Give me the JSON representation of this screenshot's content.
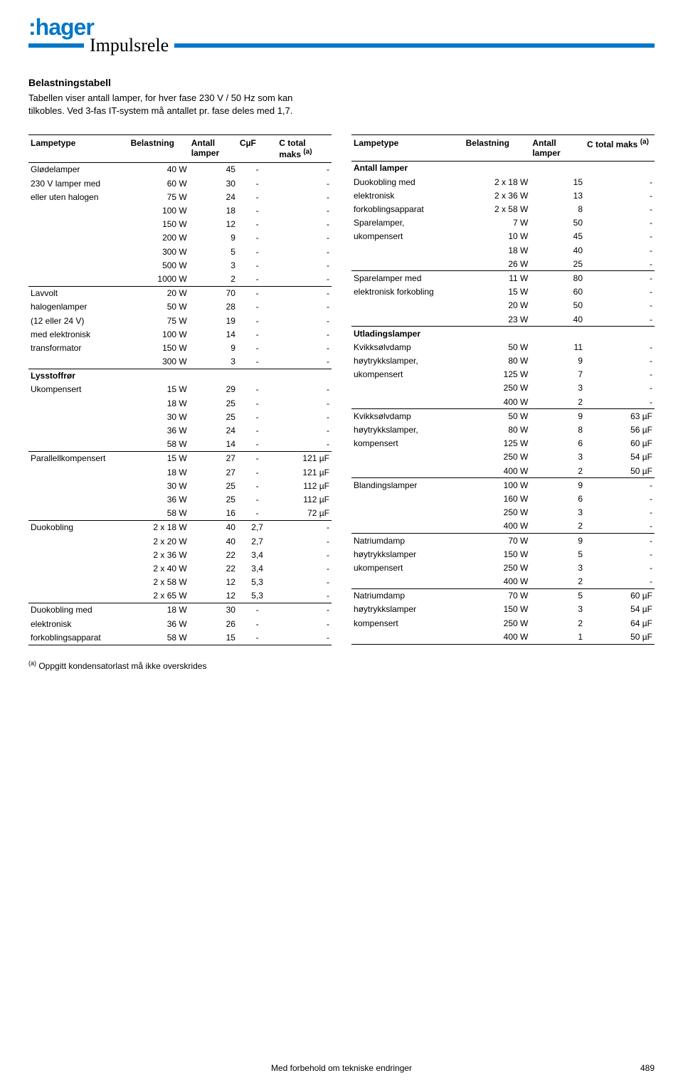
{
  "brand": ":hager",
  "page_title": "Impulsrele",
  "intro": {
    "heading": "Belastningstabell",
    "line1": "Tabellen viser antall lamper, for hver fase 230 V / 50 Hz som kan tilkobles. Ved 3-fas IT-system må antallet pr. fase deles med 1,7."
  },
  "left_table": {
    "headers": {
      "lampetype": "Lampetype",
      "belastning": "Belastning",
      "antall": "Antall lamper",
      "cuf": "CµF",
      "ctotal": "C total maks ",
      "ctotal_sup": "(a)"
    },
    "sections": [
      {
        "labels": [
          "Glødelamper",
          "230 V lamper med",
          "eller uten halogen"
        ],
        "rows": [
          {
            "b": "40 W",
            "a": "45",
            "c": "-",
            "t": "-"
          },
          {
            "b": "60 W",
            "a": "30",
            "c": "-",
            "t": "-"
          },
          {
            "b": "75 W",
            "a": "24",
            "c": "-",
            "t": "-"
          },
          {
            "b": "100 W",
            "a": "18",
            "c": "-",
            "t": "-"
          },
          {
            "b": "150 W",
            "a": "12",
            "c": "-",
            "t": "-"
          },
          {
            "b": "200 W",
            "a": "9",
            "c": "-",
            "t": "-"
          },
          {
            "b": "300 W",
            "a": "5",
            "c": "-",
            "t": "-"
          },
          {
            "b": "500 W",
            "a": "3",
            "c": "-",
            "t": "-"
          },
          {
            "b": "1000 W",
            "a": "2",
            "c": "-",
            "t": "-"
          }
        ]
      },
      {
        "labels": [
          "Lavvolt",
          "halogenlamper",
          "(12 eller 24 V)",
          "med elektronisk",
          "transformator"
        ],
        "rows": [
          {
            "b": "20 W",
            "a": "70",
            "c": "-",
            "t": "-"
          },
          {
            "b": "50 W",
            "a": "28",
            "c": "-",
            "t": "-"
          },
          {
            "b": "75 W",
            "a": "19",
            "c": "-",
            "t": "-"
          },
          {
            "b": "100 W",
            "a": "14",
            "c": "-",
            "t": "-"
          },
          {
            "b": "150 W",
            "a": "9",
            "c": "-",
            "t": "-"
          },
          {
            "b": "300 W",
            "a": "3",
            "c": "-",
            "t": "-"
          }
        ]
      },
      {
        "labels": [
          "Lysstoffrør",
          "Ukompensert"
        ],
        "bold_first": true,
        "rows": [
          {
            "b": "15 W",
            "a": "29",
            "c": "-",
            "t": "-"
          },
          {
            "b": "18 W",
            "a": "25",
            "c": "-",
            "t": "-"
          },
          {
            "b": "30 W",
            "a": "25",
            "c": "-",
            "t": "-"
          },
          {
            "b": "36 W",
            "a": "24",
            "c": "-",
            "t": "-"
          },
          {
            "b": "58 W",
            "a": "14",
            "c": "-",
            "t": "-"
          }
        ],
        "label_offset": 0
      },
      {
        "labels": [
          "Parallellkompensert"
        ],
        "rows": [
          {
            "b": "15 W",
            "a": "27",
            "c": "-",
            "t": "121 µF"
          },
          {
            "b": "18 W",
            "a": "27",
            "c": "-",
            "t": "121 µF"
          },
          {
            "b": "30 W",
            "a": "25",
            "c": "-",
            "t": "112 µF"
          },
          {
            "b": "36 W",
            "a": "25",
            "c": "-",
            "t": "112 µF"
          },
          {
            "b": "58 W",
            "a": "16",
            "c": "-",
            "t": "72 µF"
          }
        ]
      },
      {
        "labels": [
          "Duokobling"
        ],
        "rows": [
          {
            "b": "2 x 18 W",
            "a": "40",
            "c": "2,7",
            "t": "-"
          },
          {
            "b": "2 x 20 W",
            "a": "40",
            "c": "2,7",
            "t": "-"
          },
          {
            "b": "2 x 36 W",
            "a": "22",
            "c": "3,4",
            "t": "-"
          },
          {
            "b": "2 x 40 W",
            "a": "22",
            "c": "3,4",
            "t": "-"
          },
          {
            "b": "2 x 58 W",
            "a": "12",
            "c": "5,3",
            "t": "-"
          },
          {
            "b": "2 x 65 W",
            "a": "12",
            "c": "5,3",
            "t": "-"
          }
        ]
      },
      {
        "labels": [
          "Duokobling med",
          "elektronisk",
          "forkoblingsapparat"
        ],
        "rows": [
          {
            "b": "18 W",
            "a": "30",
            "c": "-",
            "t": "-"
          },
          {
            "b": "36 W",
            "a": "26",
            "c": "-",
            "t": "-"
          },
          {
            "b": "58 W",
            "a": "15",
            "c": "-",
            "t": "-"
          }
        ],
        "bottom_border": true
      }
    ]
  },
  "right_table": {
    "headers": {
      "lampetype": "Lampetype",
      "belastning": "Belastning",
      "antall": "Antall lamper",
      "ctotal": "C total maks ",
      "ctotal_sup": "(a)"
    },
    "sections": [
      {
        "prelabel": "Antall lamper",
        "labels": [
          "Duokobling med",
          "elektronisk",
          "forkoblingsapparat",
          "Sparelamper,",
          "ukompensert"
        ],
        "rows": [
          {
            "b": "2 x 18 W",
            "a": "15",
            "t": "-"
          },
          {
            "b": "2 x 36 W",
            "a": "13",
            "t": "-"
          },
          {
            "b": "2 x 58 W",
            "a": "8",
            "t": "-"
          },
          {
            "b": "7 W",
            "a": "50",
            "t": "-"
          },
          {
            "b": "10 W",
            "a": "45",
            "t": "-"
          },
          {
            "b": "18 W",
            "a": "40",
            "t": "-"
          },
          {
            "b": "26 W",
            "a": "25",
            "t": "-"
          }
        ]
      },
      {
        "labels": [
          "Sparelamper med",
          "elektronisk forkobling"
        ],
        "rows": [
          {
            "b": "11 W",
            "a": "80",
            "t": "-"
          },
          {
            "b": "15 W",
            "a": "60",
            "t": "-"
          },
          {
            "b": "20 W",
            "a": "50",
            "t": "-"
          },
          {
            "b": "23 W",
            "a": "40",
            "t": "-"
          }
        ]
      },
      {
        "labels": [
          "Utladingslamper",
          "Kvikksølvdamp",
          "høytrykkslamper,",
          "ukompensert"
        ],
        "bold_first": true,
        "rows": [
          {
            "b": "50 W",
            "a": "11",
            "t": "-"
          },
          {
            "b": "80 W",
            "a": "9",
            "t": "-"
          },
          {
            "b": "125 W",
            "a": "7",
            "t": "-"
          },
          {
            "b": "250 W",
            "a": "3",
            "t": "-"
          },
          {
            "b": "400 W",
            "a": "2",
            "t": "-"
          }
        ],
        "label_offset": 0
      },
      {
        "labels": [
          "Kvikksølvdamp",
          "høytrykkslamper,",
          "kompensert"
        ],
        "rows": [
          {
            "b": "50 W",
            "a": "9",
            "t": "63 µF"
          },
          {
            "b": "80 W",
            "a": "8",
            "t": "56 µF"
          },
          {
            "b": "125 W",
            "a": "6",
            "t": "60 µF"
          },
          {
            "b": "250 W",
            "a": "3",
            "t": "54 µF"
          },
          {
            "b": "400 W",
            "a": "2",
            "t": "50 µF"
          }
        ]
      },
      {
        "labels": [
          "Blandingslamper"
        ],
        "rows": [
          {
            "b": "100 W",
            "a": "9",
            "t": "-"
          },
          {
            "b": "160 W",
            "a": "6",
            "t": "-"
          },
          {
            "b": "250 W",
            "a": "3",
            "t": "-"
          },
          {
            "b": "400 W",
            "a": "2",
            "t": "-"
          }
        ]
      },
      {
        "labels": [
          "Natriumdamp",
          "høytrykkslamper",
          "ukompensert"
        ],
        "rows": [
          {
            "b": "70 W",
            "a": "9",
            "t": "-"
          },
          {
            "b": "150 W",
            "a": "5",
            "t": "-"
          },
          {
            "b": "250 W",
            "a": "3",
            "t": "-"
          },
          {
            "b": "400 W",
            "a": "2",
            "t": "-"
          }
        ]
      },
      {
        "labels": [
          "Natriumdamp",
          "høytrykkslamper",
          "kompensert"
        ],
        "rows": [
          {
            "b": "70 W",
            "a": "5",
            "t": "60 µF"
          },
          {
            "b": "150 W",
            "a": "3",
            "t": "54 µF"
          },
          {
            "b": "250 W",
            "a": "2",
            "t": "64 µF"
          },
          {
            "b": "400 W",
            "a": "1",
            "t": "50 µF"
          }
        ],
        "bottom_border": true
      }
    ]
  },
  "footnote_sup": "(a)",
  "footnote_text": " Oppgitt kondensatorlast må ikke overskrides",
  "footer_text": "Med forbehold om tekniske endringer",
  "page_number": "489"
}
